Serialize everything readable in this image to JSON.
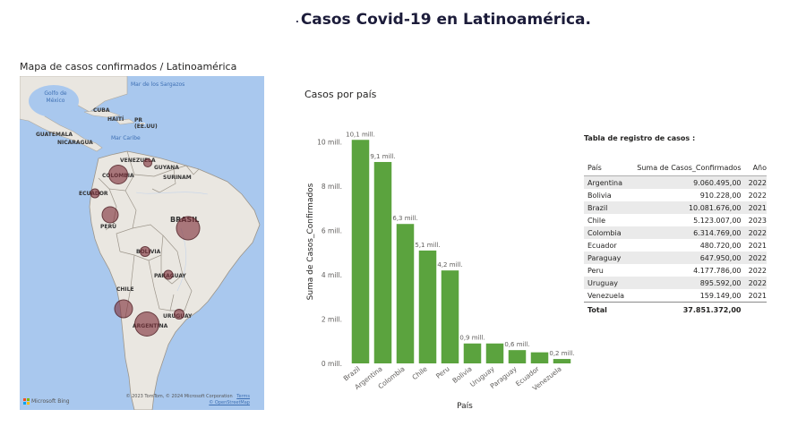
{
  "page_title": "Casos Covid-19  en Latinoamérica.",
  "page_title_marker": ".",
  "map": {
    "title": "Mapa de casos confirmados / Latinoamérica",
    "labels": {
      "golfo": "Golfo de México",
      "sargazos": "Mar de los Sargazos",
      "cuba": "CUBA",
      "haiti": "HAITÍ",
      "pr": "PR (EE.UU)",
      "guatemala": "GUATEMALA",
      "nicaragua": "NICARAGUA",
      "caribe": "Mar Caribe",
      "venezuela": "VENEZUELA",
      "guyana": "GUYANA",
      "surinam": "SURINAM",
      "colombia": "COLOMBIA",
      "ecuador": "ECUADOR",
      "peru": "PERÚ",
      "brasil": "BRASIL",
      "bolivia": "BOLIVIA",
      "paraguay": "PARAGUAY",
      "chile": "CHILE",
      "uruguay": "URUGUAY",
      "argentina": "ARGENTINA"
    },
    "provider": "Microsoft Bing",
    "copyright": "© 2023 TomTom, © 2024 Microsoft Corporation",
    "terms": "Terms",
    "osm": "© OpenStreetMap",
    "bubble_color": "#80303a"
  },
  "chart_data": {
    "type": "bar",
    "title": "Casos por país",
    "xlabel": "País",
    "ylabel": "Suma de Casos_Confirmados",
    "categories": [
      "Brazil",
      "Argentina",
      "Colombia",
      "Chile",
      "Peru",
      "Bolivia",
      "Uruguay",
      "Paraguay",
      "Ecuador",
      "Venezuela"
    ],
    "values": [
      10.1,
      9.1,
      6.3,
      5.1,
      4.2,
      0.9,
      0.9,
      0.6,
      0.5,
      0.2
    ],
    "data_labels": [
      "10,1 mill.",
      "9,1 mill.",
      "6,3 mill.",
      "5,1 mill.",
      "4,2 mill.",
      "0,9 mill.",
      "",
      "0,6 mill.",
      "",
      "0,2 mill."
    ],
    "yticks": [
      0,
      2,
      4,
      6,
      8,
      10
    ],
    "ytick_labels": [
      "0 mill.",
      "2 mill.",
      "4 mill.",
      "6 mill.",
      "8 mill.",
      "10 mill."
    ],
    "ylim": [
      0,
      11
    ],
    "unit": "mill.",
    "bar_color": "#5ba33e"
  },
  "table": {
    "title": "Tabla de registro de casos :",
    "headers": [
      "País",
      "Suma de Casos_Confirmados",
      "Año"
    ],
    "rows": [
      [
        "Argentina",
        "9.060.495,00",
        "2022"
      ],
      [
        "Bolivia",
        "910.228,00",
        "2022"
      ],
      [
        "Brazil",
        "10.081.676,00",
        "2021"
      ],
      [
        "Chile",
        "5.123.007,00",
        "2023"
      ],
      [
        "Colombia",
        "6.314.769,00",
        "2022"
      ],
      [
        "Ecuador",
        "480.720,00",
        "2021"
      ],
      [
        "Paraguay",
        "647.950,00",
        "2022"
      ],
      [
        "Peru",
        "4.177.786,00",
        "2022"
      ],
      [
        "Uruguay",
        "895.592,00",
        "2022"
      ],
      [
        "Venezuela",
        "159.149,00",
        "2021"
      ]
    ],
    "total_label": "Total",
    "total_value": "37.851.372,00"
  }
}
